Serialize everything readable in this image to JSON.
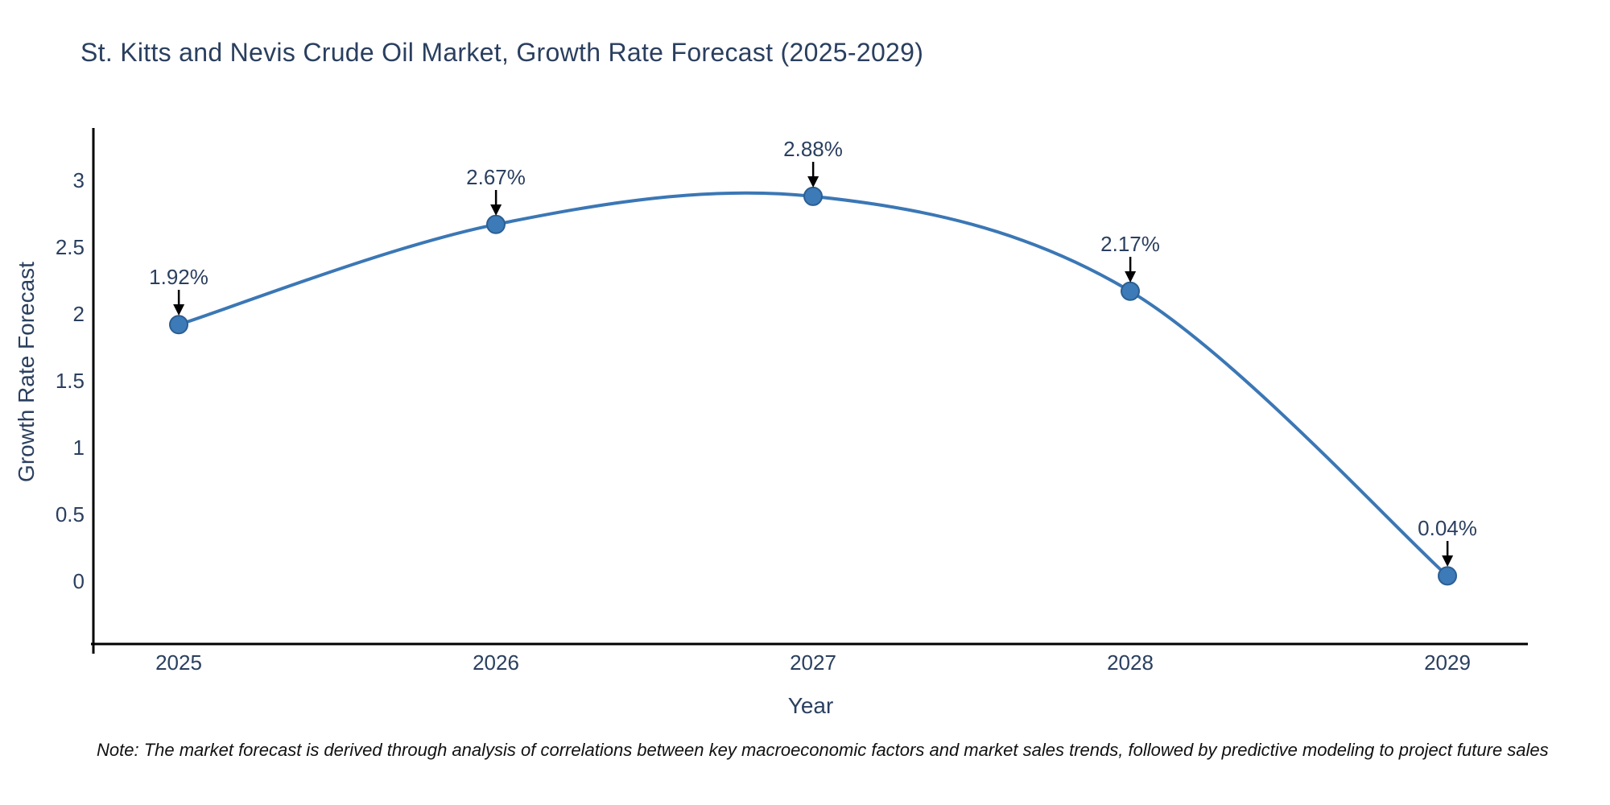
{
  "note": "Note: The market forecast is derived through analysis of correlations between key macroeconomic factors and market sales trends, followed by predictive modeling to project future sales",
  "chart_data": {
    "type": "line",
    "line_shape": "spline",
    "title": "St. Kitts and Nevis Crude Oil Market, Growth Rate Forecast (2025-2029)",
    "xlabel": "Year",
    "ylabel": "Growth Rate Forecast",
    "categories": [
      "2025",
      "2026",
      "2027",
      "2028",
      "2029"
    ],
    "values": [
      1.92,
      2.67,
      2.88,
      2.17,
      0.04
    ],
    "point_labels": [
      "1.92%",
      "2.67%",
      "2.88%",
      "2.17%",
      "0.04%"
    ],
    "y_ticks": [
      0,
      0.5,
      1,
      1.5,
      2,
      2.5,
      3
    ],
    "ylim": [
      -0.5,
      3.4
    ],
    "grid": false,
    "legend": false,
    "colors": {
      "line": "#3b77b5",
      "marker_fill": "#3d7ab8",
      "marker_border": "#2b5f93",
      "axis_line": "#000000",
      "tick_text": "#2a3f5f",
      "annotation_text": "#2a3f5f",
      "annotation_arrow": "#000000",
      "note_text": "#111111"
    }
  }
}
